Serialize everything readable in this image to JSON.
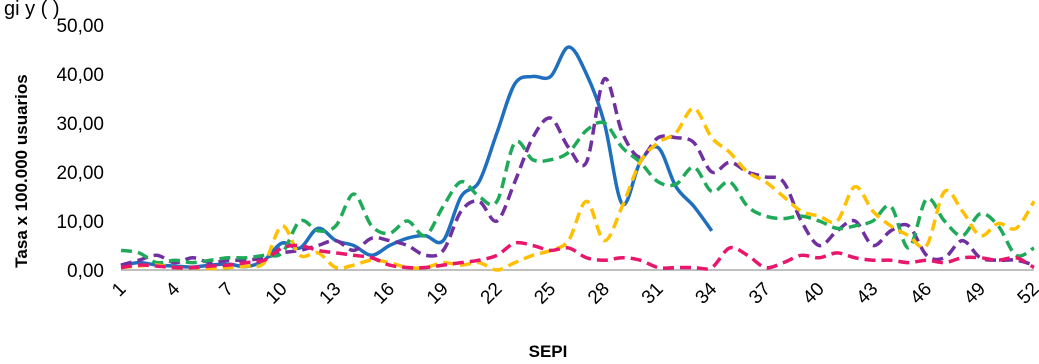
{
  "chart_data": {
    "type": "line",
    "top_text": "gi y (                   ) ",
    "ylabel": "Tasa x 100.000 usuarios",
    "xlabel": "SEPI",
    "ylim": [
      0,
      50
    ],
    "xlim": [
      1,
      52
    ],
    "yticks": [
      "0,00",
      "10,00",
      "20,00",
      "30,00",
      "40,00",
      "50,00"
    ],
    "xticks": [
      "1",
      "4",
      "7",
      "10",
      "13",
      "16",
      "19",
      "22",
      "25",
      "28",
      "31",
      "34",
      "37",
      "40",
      "43",
      "46",
      "49",
      "52"
    ],
    "grid": false,
    "legend": "none",
    "series": [
      {
        "color": "#1f6fbf",
        "dash": "solid",
        "x": [
          1,
          2,
          3,
          4,
          5,
          6,
          7,
          8,
          9,
          10,
          11,
          12,
          13,
          14,
          15,
          16,
          17,
          18,
          19,
          20,
          21,
          22,
          23,
          24,
          25,
          26,
          27,
          28,
          29,
          30,
          31,
          32,
          33,
          34
        ],
        "y": [
          0.8,
          1.5,
          1.0,
          0.8,
          0.6,
          1.0,
          1.2,
          0.7,
          2.0,
          5.5,
          4.5,
          8.5,
          6.0,
          5.0,
          3.0,
          5.0,
          6.5,
          7.0,
          6.0,
          15.0,
          18.0,
          28.0,
          38.0,
          39.5,
          39.5,
          45.5,
          40.0,
          30.0,
          13.5,
          22.0,
          25.0,
          17.0,
          13.0,
          8.0
        ]
      },
      {
        "color": "#7030a0",
        "dash": "dash",
        "x": [
          1,
          2,
          3,
          4,
          5,
          6,
          7,
          8,
          9,
          10,
          11,
          12,
          13,
          14,
          15,
          16,
          17,
          18,
          19,
          20,
          21,
          22,
          23,
          24,
          25,
          26,
          27,
          28,
          29,
          30,
          31,
          32,
          33,
          34,
          35,
          36,
          37,
          38,
          39,
          40,
          41,
          42,
          43,
          44,
          45,
          46,
          47,
          48,
          49,
          50,
          51,
          52
        ],
        "y": [
          1.0,
          2.0,
          3.0,
          1.5,
          2.5,
          1.5,
          2.0,
          2.0,
          2.5,
          3.5,
          4.0,
          5.0,
          6.0,
          4.0,
          6.5,
          6.0,
          5.0,
          3.0,
          4.0,
          12.0,
          14.0,
          10.0,
          18.0,
          27.0,
          31.0,
          25.0,
          22.0,
          39.0,
          28.0,
          23.0,
          27.0,
          27.0,
          26.0,
          20.0,
          22.0,
          20.0,
          19.0,
          18.0,
          10.0,
          5.0,
          8.0,
          10.0,
          5.0,
          8.0,
          9.0,
          3.0,
          2.5,
          6.0,
          2.5,
          2.0,
          2.0,
          1.0
        ]
      },
      {
        "color": "#1faa59",
        "dash": "dash",
        "x": [
          1,
          2,
          3,
          4,
          5,
          6,
          7,
          8,
          9,
          10,
          11,
          12,
          13,
          14,
          15,
          16,
          17,
          18,
          19,
          20,
          21,
          22,
          23,
          24,
          25,
          26,
          27,
          28,
          29,
          30,
          31,
          32,
          33,
          34,
          35,
          36,
          37,
          38,
          39,
          40,
          41,
          42,
          43,
          44,
          45,
          46,
          47,
          48,
          49,
          50,
          51,
          52
        ],
        "y": [
          4.0,
          3.5,
          1.5,
          2.0,
          1.5,
          2.0,
          2.5,
          2.5,
          3.0,
          3.5,
          10.0,
          8.0,
          9.0,
          15.5,
          9.0,
          7.5,
          10.0,
          7.0,
          13.0,
          18.0,
          15.0,
          14.0,
          26.0,
          22.5,
          22.5,
          24.0,
          28.5,
          30.0,
          25.0,
          22.0,
          18.0,
          17.5,
          21.0,
          16.0,
          18.0,
          13.0,
          11.0,
          10.5,
          11.0,
          10.0,
          8.5,
          9.0,
          10.0,
          13.0,
          4.5,
          14.5,
          10.0,
          7.0,
          11.5,
          9.0,
          3.0,
          4.5
        ]
      },
      {
        "color": "#ffc000",
        "dash": "dash",
        "x": [
          1,
          2,
          3,
          4,
          5,
          6,
          7,
          8,
          9,
          10,
          11,
          12,
          13,
          14,
          15,
          16,
          17,
          18,
          19,
          20,
          21,
          22,
          23,
          24,
          25,
          26,
          27,
          28,
          29,
          30,
          31,
          32,
          33,
          34,
          35,
          36,
          37,
          38,
          39,
          40,
          41,
          42,
          43,
          44,
          45,
          46,
          47,
          48,
          49,
          50,
          51,
          52
        ],
        "y": [
          0.5,
          0.8,
          1.0,
          0.5,
          0.5,
          0.3,
          0.5,
          0.8,
          1.5,
          9.0,
          3.0,
          3.5,
          0.5,
          1.0,
          2.0,
          1.5,
          0.5,
          0.5,
          1.5,
          1.0,
          1.5,
          0.0,
          1.5,
          3.0,
          4.0,
          6.0,
          14.0,
          6.0,
          13.0,
          22.0,
          26.0,
          28.0,
          33.0,
          27.0,
          24.0,
          20.0,
          18.0,
          15.0,
          12.0,
          11.0,
          10.0,
          17.0,
          12.0,
          9.0,
          7.0,
          5.0,
          16.0,
          12.0,
          7.0,
          9.5,
          8.5,
          14.0
        ]
      },
      {
        "color": "#e8166c",
        "dash": "dash",
        "x": [
          1,
          2,
          3,
          4,
          5,
          6,
          7,
          8,
          9,
          10,
          11,
          12,
          13,
          14,
          15,
          16,
          17,
          18,
          19,
          20,
          21,
          22,
          23,
          24,
          25,
          26,
          27,
          28,
          29,
          30,
          31,
          32,
          33,
          34,
          35,
          36,
          37,
          38,
          39,
          40,
          41,
          42,
          43,
          44,
          45,
          46,
          47,
          48,
          49,
          50,
          51,
          52
        ],
        "y": [
          0.5,
          1.0,
          0.8,
          0.5,
          0.5,
          0.8,
          1.0,
          1.5,
          2.0,
          4.5,
          5.0,
          4.0,
          3.5,
          3.0,
          2.5,
          1.0,
          0.5,
          0.5,
          1.0,
          1.5,
          2.0,
          3.0,
          5.5,
          5.0,
          4.0,
          4.5,
          2.5,
          2.0,
          2.5,
          2.0,
          0.5,
          0.5,
          0.5,
          0.5,
          4.5,
          3.0,
          0.5,
          1.5,
          3.0,
          2.5,
          3.5,
          2.5,
          2.0,
          2.0,
          1.5,
          2.0,
          1.5,
          2.5,
          2.5,
          2.0,
          2.5,
          0.5
        ]
      }
    ]
  }
}
